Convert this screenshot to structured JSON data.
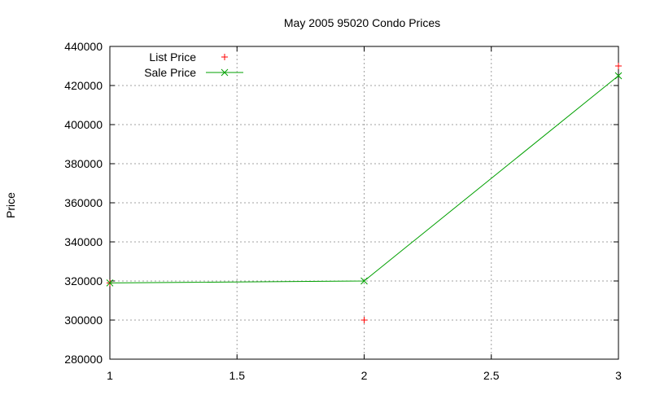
{
  "chart_data": {
    "type": "line",
    "title": "May 2005 95020 Condo Prices",
    "xlabel": "",
    "ylabel": "Price",
    "xlim": [
      1,
      3
    ],
    "ylim": [
      280000,
      440000
    ],
    "x_ticks": [
      "1",
      "1.5",
      "2",
      "2.5",
      "3"
    ],
    "y_ticks": [
      "280000",
      "300000",
      "320000",
      "340000",
      "360000",
      "380000",
      "400000",
      "420000",
      "440000"
    ],
    "grid": true,
    "legend_position": "top-left",
    "x": [
      1,
      2,
      3
    ],
    "series": [
      {
        "name": "List Price",
        "style": "points",
        "marker": "+",
        "color": "#ff0000",
        "values": [
          319000,
          300000,
          430000
        ]
      },
      {
        "name": "Sale Price",
        "style": "linespoints",
        "marker": "x",
        "color": "#00a000",
        "values": [
          319000,
          320000,
          425000
        ]
      }
    ]
  }
}
